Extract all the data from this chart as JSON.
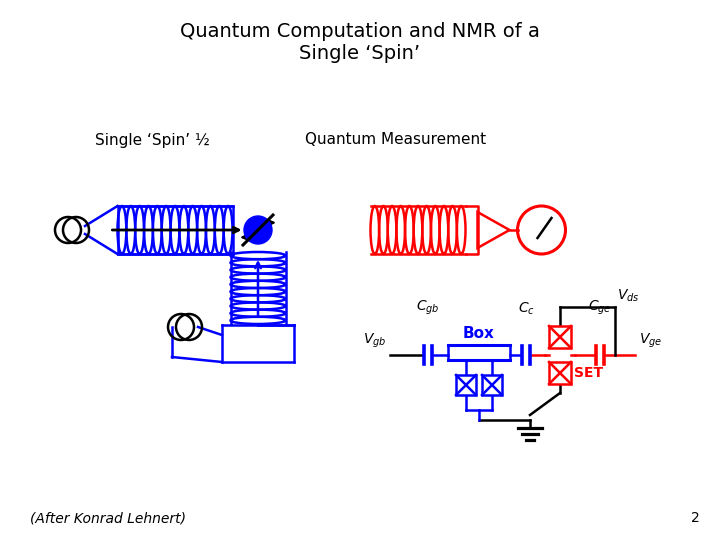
{
  "title": "Quantum Computation and NMR of a\nSingle ‘Spin’",
  "subtitle_left": "Single ‘Spin’ ½",
  "subtitle_right": "Quantum Measurement",
  "footer": "(After Konrad Lehnert)",
  "page_num": "2",
  "blue": "#0000FF",
  "red": "#FF0000",
  "black": "#000000",
  "bg": "#FFFFFF"
}
